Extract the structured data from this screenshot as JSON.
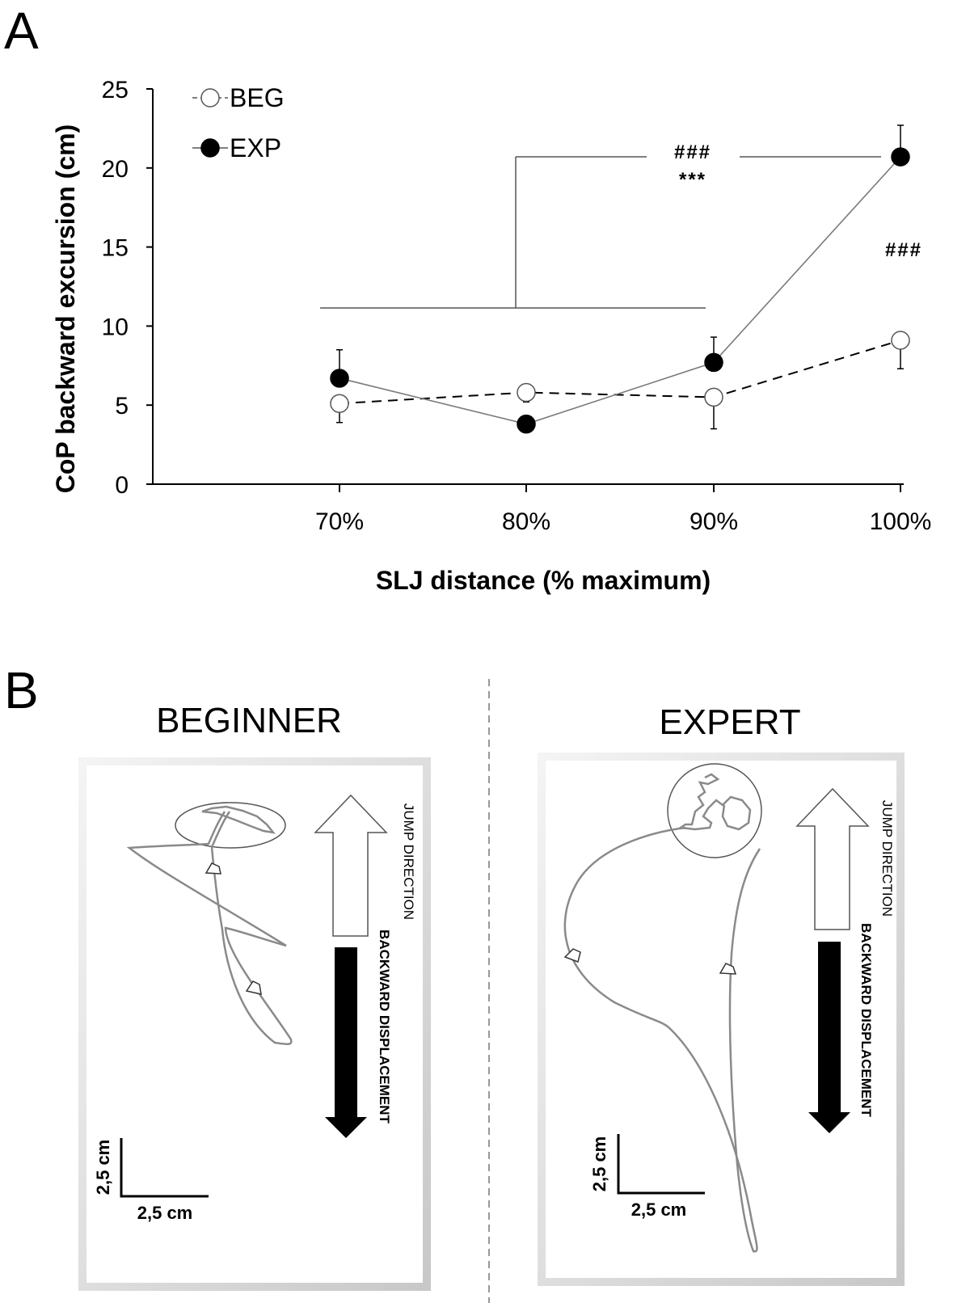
{
  "panels": {
    "a_label": "A",
    "b_label": "B"
  },
  "chart_data": {
    "type": "line",
    "categories": [
      "70%",
      "80%",
      "90%",
      "100%"
    ],
    "xlabel": "SLJ distance (% maximum)",
    "ylabel": "CoP backward excursion (cm)",
    "ylim": [
      0,
      25
    ],
    "yticks": [
      "0",
      "5",
      "10",
      "15",
      "20",
      "25"
    ],
    "grid": false,
    "legend_position": "top-left",
    "series": [
      {
        "name": "BEG",
        "marker": "open-circle",
        "line": "dashed",
        "values": [
          5.1,
          5.8,
          5.5,
          9.1
        ],
        "error_up": [
          0,
          0,
          0,
          0
        ],
        "error_down": [
          1.2,
          0.6,
          2.0,
          1.8
        ]
      },
      {
        "name": "EXP",
        "marker": "filled-circle",
        "line": "solid",
        "values": [
          6.7,
          3.8,
          7.7,
          20.7
        ],
        "error_up": [
          1.8,
          0,
          1.6,
          2.0
        ],
        "error_down": [
          0,
          0,
          0,
          0
        ]
      }
    ],
    "annotations": {
      "top_hash": "###",
      "top_stars": "***",
      "side_hash": "###"
    }
  },
  "panel_b": {
    "beginner": {
      "title": "BEGINNER",
      "jump_direction": "JUMP DIRECTION",
      "backward_displacement": "BACKWARD DISPLACEMENT",
      "scale_x": "2,5 cm",
      "scale_y": "2,5 cm"
    },
    "expert": {
      "title": "EXPERT",
      "jump_direction": "JUMP DIRECTION",
      "backward_displacement": "BACKWARD DISPLACEMENT",
      "scale_x": "2,5 cm",
      "scale_y": "2,5 cm"
    }
  },
  "colors": {
    "trace": "#8a8a8a",
    "line": "#7a7a7a",
    "ink": "#000000",
    "frame": "#cccccc"
  }
}
